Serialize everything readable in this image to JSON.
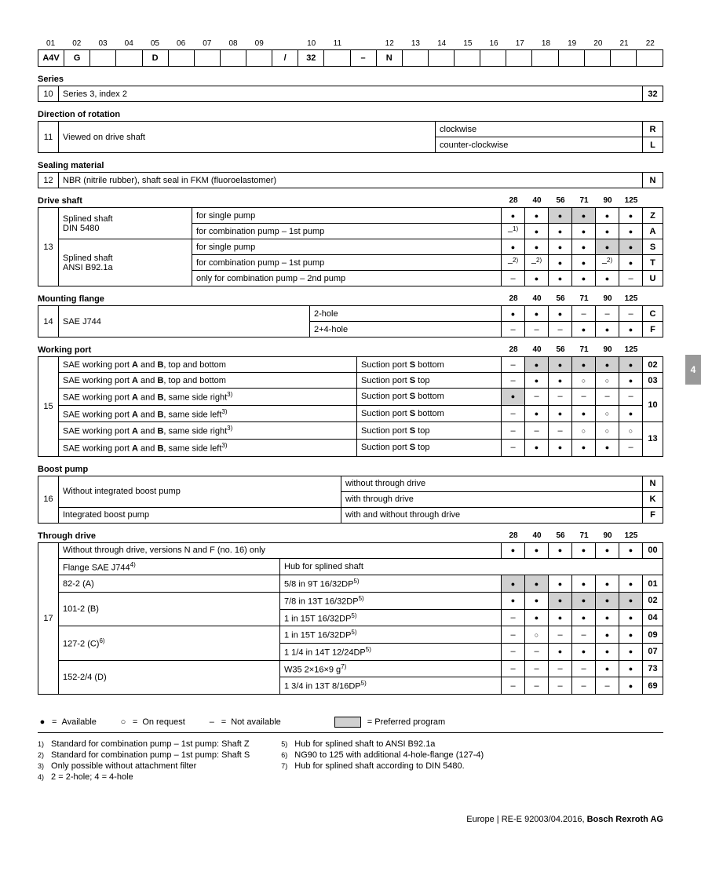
{
  "codeHeader": [
    "01",
    "02",
    "03",
    "04",
    "05",
    "06",
    "07",
    "08",
    "09",
    "",
    "10",
    "11",
    "",
    "12",
    "13",
    "14",
    "15",
    "16",
    "17",
    "18",
    "19",
    "20",
    "21",
    "22"
  ],
  "codeRow": [
    "A4V",
    "G",
    "",
    "",
    "D",
    "",
    "",
    "",
    "",
    "/",
    "32",
    "",
    "–",
    "N",
    "",
    "",
    "",
    "",
    "",
    "",
    "",
    "",
    "",
    ""
  ],
  "sections": {
    "series": {
      "title": "Series",
      "idx": "10",
      "text": "Series 3, index 2",
      "code": "32"
    },
    "rotation": {
      "title": "Direction of rotation",
      "idx": "11",
      "text": "Viewed on drive shaft",
      "opts": [
        {
          "label": "clockwise",
          "code": "R"
        },
        {
          "label": "counter-clockwise",
          "code": "L"
        }
      ]
    },
    "sealing": {
      "title": "Sealing material",
      "idx": "12",
      "text": "NBR (nitrile rubber), shaft seal in FKM (fluoroelastomer)",
      "code": "N"
    },
    "sizes": [
      "28",
      "40",
      "56",
      "71",
      "90",
      "125"
    ],
    "driveShaft": {
      "title": "Drive shaft",
      "idx": "13",
      "rows": [
        {
          "l1": "Splined shaft",
          "l1b": "DIN 5480",
          "l2": "for single pump",
          "s": [
            "d",
            "d",
            "dp",
            "dp",
            "d",
            "d"
          ],
          "code": "Z"
        },
        {
          "l1": "",
          "l2": "for combination pump – 1st pump",
          "s": [
            "n1",
            "d",
            "d",
            "d",
            "d",
            "d"
          ],
          "code": "A"
        },
        {
          "l1": "Splined shaft",
          "l1b": "ANSI B92.1a",
          "l2": "for single pump",
          "s": [
            "d",
            "d",
            "d",
            "d",
            "dp",
            "dp"
          ],
          "code": "S"
        },
        {
          "l1": "",
          "l2": "for combination pump – 1st pump",
          "s": [
            "n2",
            "n2",
            "d",
            "d",
            "n2",
            "d"
          ],
          "code": "T"
        },
        {
          "l1": "",
          "l2": "only for combination pump – 2nd pump",
          "s": [
            "-",
            "d",
            "d",
            "d",
            "d",
            "-"
          ],
          "code": "U"
        }
      ]
    },
    "flange": {
      "title": "Mounting flange",
      "idx": "14",
      "rows": [
        {
          "l1": "SAE J744",
          "l2": "2-hole",
          "s": [
            "d",
            "d",
            "d",
            "-",
            "-",
            "-"
          ],
          "code": "C"
        },
        {
          "l1": "",
          "l2": "2+4-hole",
          "s": [
            "-",
            "-",
            "-",
            "d",
            "d",
            "d"
          ],
          "code": "F"
        }
      ]
    },
    "port": {
      "title": "Working port",
      "idx": "15",
      "rows": [
        {
          "l": "SAE working port <b>A</b> and <b>B</b>, top and bottom",
          "r": "Suction port <b>S</b> bottom",
          "s": [
            "-",
            "dp",
            "dp",
            "dp",
            "dp",
            "dp"
          ],
          "code": "02"
        },
        {
          "l": "SAE working port <b>A</b> and <b>B</b>, top and bottom",
          "r": "Suction port <b>S</b> top",
          "s": [
            "-",
            "d",
            "d",
            "o",
            "o",
            "d"
          ],
          "code": "03"
        },
        {
          "l": "SAE working port <b>A</b> and <b>B</b>, same side right<sup>3)</sup>",
          "r": "Suction port <b>S</b> bottom",
          "s": [
            "dp",
            "-",
            "-",
            "-",
            "-",
            "-"
          ],
          "code": "10",
          "span": 2
        },
        {
          "l": "SAE working port <b>A</b> and <b>B</b>, same side left<sup>3)</sup>",
          "r": "Suction port <b>S</b> bottom",
          "s": [
            "-",
            "d",
            "d",
            "d",
            "o",
            "d"
          ],
          "code": ""
        },
        {
          "l": "SAE working port <b>A</b> and <b>B</b>, same side right<sup>3)</sup>",
          "r": "Suction port <b>S</b> top",
          "s": [
            "-",
            "-",
            "-",
            "o",
            "o",
            "o"
          ],
          "code": "13",
          "span": 2
        },
        {
          "l": "SAE working port <b>A</b> and <b>B</b>, same side left<sup>3)</sup>",
          "r": "Suction port <b>S</b> top",
          "s": [
            "-",
            "d",
            "d",
            "d",
            "d",
            "-"
          ],
          "code": ""
        }
      ]
    },
    "boost": {
      "title": "Boost pump",
      "idx": "16",
      "rows": [
        {
          "l": "Without integrated boost pump",
          "r": "without through drive",
          "code": "N"
        },
        {
          "l": "",
          "r": "with through drive",
          "code": "K"
        },
        {
          "l": "Integrated boost pump",
          "r": "with and without through drive",
          "code": "F"
        }
      ]
    },
    "through": {
      "title": "Through drive",
      "idx": "17",
      "head": {
        "l": "Without through drive, versions N and F (no. 16) only",
        "s": [
          "d",
          "d",
          "d",
          "d",
          "d",
          "d"
        ],
        "code": "00"
      },
      "hub": {
        "l": "Flange SAE J744<sup>4)</sup>",
        "r": "Hub for splined shaft"
      },
      "rows": [
        {
          "l": "82-2 (A)",
          "r": "5/8 in 9T 16/32DP<sup>5)</sup>",
          "s": [
            "dp",
            "dp",
            "d",
            "d",
            "d",
            "d"
          ],
          "code": "01"
        },
        {
          "l": "101-2 (B)",
          "r": "7/8 in 13T 16/32DP<sup>5)</sup>",
          "s": [
            "d",
            "d",
            "dp",
            "dp",
            "dp",
            "dp"
          ],
          "code": "02"
        },
        {
          "l": "",
          "r": "1 in 15T 16/32DP<sup>5)</sup>",
          "s": [
            "-",
            "d",
            "d",
            "d",
            "d",
            "d"
          ],
          "code": "04"
        },
        {
          "l": "127-2 (C)<sup>6)</sup>",
          "r": "1 in 15T 16/32DP<sup>5)</sup>",
          "s": [
            "-",
            "o",
            "-",
            "-",
            "d",
            "d"
          ],
          "code": "09"
        },
        {
          "l": "",
          "r": "1 1/4 in 14T 12/24DP<sup>5)</sup>",
          "s": [
            "-",
            "-",
            "d",
            "d",
            "d",
            "d"
          ],
          "code": "07"
        },
        {
          "l": "152-2/4 (D)",
          "r": "W35 2×16×9 g<sup>7)</sup>",
          "s": [
            "-",
            "-",
            "-",
            "-",
            "d",
            "d"
          ],
          "code": "73"
        },
        {
          "l": "",
          "r": "1 3/4 in 13T 8/16DP<sup>5)</sup>",
          "s": [
            "-",
            "-",
            "-",
            "-",
            "-",
            "d"
          ],
          "code": "69"
        }
      ]
    }
  },
  "legend": {
    "avail": "Available",
    "req": "On request",
    "na": "Not available",
    "pref": "Preferred program"
  },
  "foot": {
    "left": [
      "Standard for combination pump – 1st pump: Shaft Z",
      "Standard for combination pump – 1st pump: Shaft S",
      "Only possible without attachment filter",
      "2 = 2-hole; 4 = 4-hole"
    ],
    "right": [
      "Hub for splined shaft to ANSI B92.1a",
      "NG90 to 125 with additional 4-hole-flange (127-4)",
      "Hub for splined shaft according to DIN 5480."
    ]
  },
  "pageFoot": {
    "region": "Europe",
    "doc": "RE-E 92003/04.2016",
    "brand": "Bosch Rexroth AG"
  },
  "tab": "4"
}
